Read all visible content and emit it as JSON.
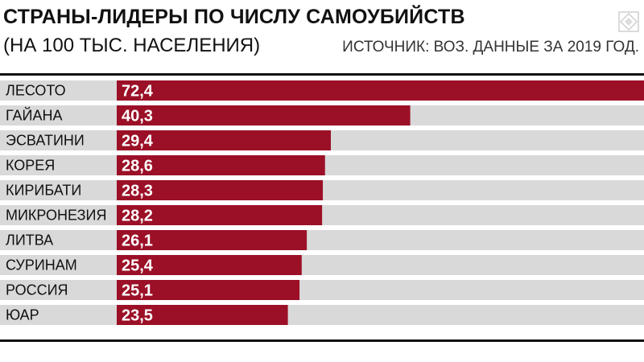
{
  "header": {
    "title": "СТРАНЫ-ЛИДЕРЫ ПО ЧИСЛУ САМОУБИЙСТВ",
    "subtitle": "(НА 100 ТЫС. НАСЕЛЕНИЯ)",
    "source": "ИСТОЧНИК: ВОЗ. ДАННЫЕ ЗА 2019 ГОД."
  },
  "logo_icon": "ornament-logo-icon",
  "colors": {
    "bar": "#9b1027",
    "track": "#d9d9d9",
    "text": "#111111",
    "value_text": "#ffffff"
  },
  "chart_data": {
    "type": "bar",
    "orientation": "horizontal",
    "title": "СТРАНЫ-ЛИДЕРЫ ПО ЧИСЛУ САМОУБИЙСТВ",
    "subtitle": "(НА 100 ТЫС. НАСЕЛЕНИЯ)",
    "categories": [
      "ЛЕСОТО",
      "ГАЙАНА",
      "ЭСВАТИНИ",
      "КОРЕЯ",
      "КИРИБАТИ",
      "МИКРОНЕЗИЯ",
      "ЛИТВА",
      "СУРИНАМ",
      "РОССИЯ",
      "ЮАР"
    ],
    "values": [
      72.4,
      40.3,
      29.4,
      28.6,
      28.3,
      28.2,
      26.1,
      25.4,
      25.1,
      23.5
    ],
    "value_labels": [
      "72,4",
      "40,3",
      "29,4",
      "28,6",
      "28,3",
      "28,2",
      "26,1",
      "25,4",
      "25,1",
      "23,5"
    ],
    "xlim": [
      0,
      72.4
    ],
    "grid": false,
    "legend": "none"
  }
}
